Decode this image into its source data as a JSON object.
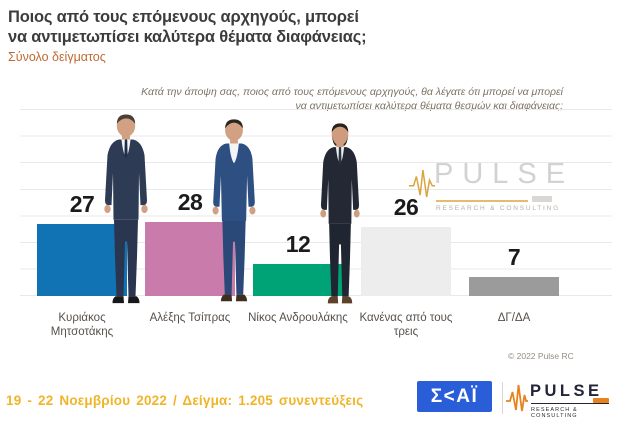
{
  "title": {
    "line1": "Ποιος από τους επόμενους αρχηγούς, μπορεί",
    "line2": "να αντιμετωπίσει καλύτερα θέματα διαφάνειας;"
  },
  "subtitle": "Σύνολο δείγματος",
  "note": {
    "line1": "Κατά την άποψη σας, ποιος  από τους επόμενους αρχηγούς, θα λέγατε ότι μπορεί να μπορεί",
    "line2": "να αντιμετωπίσει καλύτερα θέματα θεσμών και διαφάνειας;"
  },
  "chart_data": {
    "type": "bar",
    "title": "Ποιος από τους επόμενους αρχηγούς, μπορεί να αντιμετωπίσει καλύτερα θέματα διαφάνειας;",
    "categories": [
      "Κυριάκος Μητσοτάκης",
      "Αλέξης Τσίπρας",
      "Νίκος Ανδρουλάκης",
      "Κανένας από τους τρεις",
      "ΔΓ/ΔΑ"
    ],
    "values": [
      27,
      28,
      12,
      26,
      7
    ],
    "bar_colors": [
      "#1273b4",
      "#c97cab",
      "#00a376",
      "#ededed",
      "#9b9b9b"
    ],
    "xlabel": "",
    "ylabel": "",
    "ylim": [
      0,
      72
    ],
    "grid": "horizontal gridlines every 10 units, no y-axis labels",
    "legend": "none"
  },
  "watermark": {
    "brand": "PULSE",
    "tagline": "RESEARCH & CONSULTING"
  },
  "copyright": "© 2022 Pulse RC",
  "footer": {
    "fieldwork": "19 - 22  Νοεμβρίου  2022  /  Δείγμα:  1.205 συνεντεύξεις"
  },
  "logos": {
    "skai_display": "Σ<ΑΪ",
    "pulse_brand": "PULSE",
    "pulse_tagline": "RESEARCH & CONSULTING"
  },
  "colors": {
    "subtitle_orange": "#c06a35",
    "footer_gold": "#f0b429",
    "skai_blue": "#2a5ed8",
    "pulse_orange": "#e8821e",
    "watermark_gold": "#d9a441"
  }
}
